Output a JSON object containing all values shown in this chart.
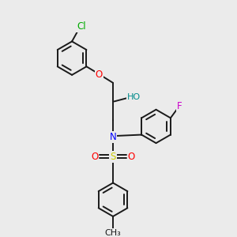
{
  "bg_color": "#ebebeb",
  "bond_color": "#1a1a1a",
  "bond_width": 1.4,
  "atom_colors": {
    "Cl": "#00aa00",
    "O": "#ff0000",
    "HO": "#008b8b",
    "N": "#0000ff",
    "S": "#cccc00",
    "F": "#cc00cc"
  },
  "font_size": 8.5,
  "ring_r": 0.72
}
